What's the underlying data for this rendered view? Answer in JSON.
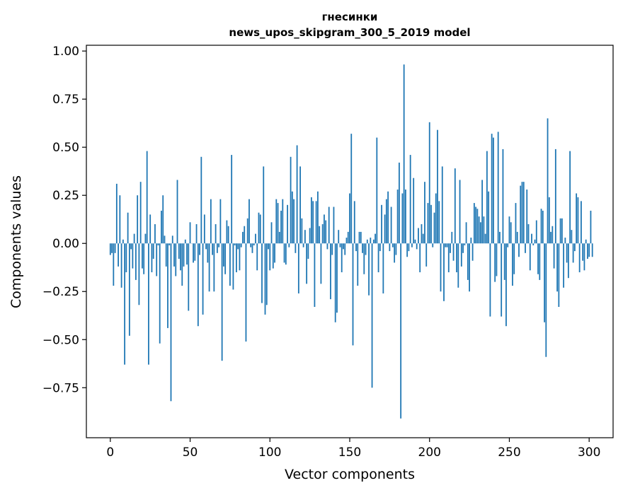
{
  "chart_data": {
    "type": "bar",
    "title": "гнесинки",
    "subtitle": "news_upos_skipgram_300_5_2019 model",
    "xlabel": "Vector components",
    "ylabel": "Components values",
    "xlim": [
      -15,
      315
    ],
    "ylim": [
      -1.01,
      1.03
    ],
    "xticks": [
      0,
      50,
      100,
      150,
      200,
      250,
      300
    ],
    "yticks": [
      -0.75,
      -0.5,
      -0.25,
      0.0,
      0.25,
      0.5,
      0.75,
      1.0
    ],
    "xtick_labels": [
      "0",
      "50",
      "100",
      "150",
      "200",
      "250",
      "300"
    ],
    "ytick_labels": [
      "−0.75",
      "−0.50",
      "−0.25",
      "0.00",
      "0.25",
      "0.50",
      "0.75",
      "1.00"
    ],
    "grid": false,
    "bar_color": "#1f77b4",
    "series": [
      {
        "values": [
          -0.06,
          -0.05,
          -0.22,
          -0.05,
          0.31,
          -0.12,
          0.25,
          -0.23,
          0.02,
          -0.63,
          -0.15,
          0.16,
          -0.48,
          -0.03,
          -0.13,
          0.05,
          -0.19,
          0.25,
          -0.32,
          0.32,
          -0.13,
          -0.16,
          0.05,
          0.48,
          -0.63,
          0.15,
          -0.15,
          -0.08,
          0.1,
          -0.17,
          -0.01,
          -0.52,
          0.17,
          0.25,
          0.04,
          -0.12,
          -0.44,
          -0.01,
          -0.82,
          0.04,
          -0.12,
          -0.17,
          0.33,
          -0.08,
          -0.14,
          -0.22,
          -0.12,
          0.02,
          -0.11,
          -0.35,
          0.11,
          0.0,
          -0.1,
          -0.09,
          0.1,
          -0.43,
          -0.06,
          0.45,
          -0.37,
          0.15,
          -0.03,
          -0.1,
          -0.25,
          0.23,
          -0.06,
          -0.25,
          0.1,
          -0.05,
          -0.02,
          0.23,
          -0.61,
          -0.12,
          -0.16,
          0.12,
          0.09,
          -0.22,
          0.46,
          -0.24,
          -0.01,
          -0.15,
          -0.03,
          -0.14,
          -0.02,
          0.06,
          0.09,
          -0.51,
          0.13,
          0.23,
          -0.02,
          -0.05,
          -0.01,
          0.05,
          -0.14,
          0.16,
          0.15,
          -0.31,
          0.4,
          -0.37,
          -0.32,
          -0.03,
          -0.14,
          0.11,
          -0.13,
          -0.1,
          0.23,
          0.21,
          0.06,
          0.17,
          0.23,
          -0.1,
          -0.11,
          0.2,
          -0.02,
          0.45,
          0.27,
          0.23,
          -0.05,
          0.51,
          -0.26,
          0.4,
          0.13,
          -0.02,
          0.07,
          -0.21,
          -0.08,
          0.08,
          0.24,
          0.22,
          -0.33,
          0.22,
          0.27,
          0.09,
          -0.21,
          0.1,
          0.15,
          0.12,
          -0.03,
          0.19,
          -0.29,
          -0.06,
          0.19,
          -0.41,
          -0.36,
          0.07,
          -0.02,
          -0.15,
          -0.03,
          -0.06,
          0.03,
          0.06,
          0.26,
          0.57,
          -0.53,
          0.22,
          -0.04,
          -0.22,
          0.06,
          0.06,
          -0.05,
          -0.16,
          -0.06,
          0.02,
          -0.27,
          0.03,
          -0.75,
          0.02,
          0.05,
          0.55,
          -0.15,
          -0.04,
          0.2,
          -0.26,
          0.15,
          0.23,
          0.27,
          -0.04,
          0.19,
          -0.02,
          -0.1,
          -0.06,
          0.28,
          0.42,
          -0.91,
          0.26,
          0.93,
          0.28,
          -0.07,
          -0.04,
          0.46,
          -0.02,
          0.34,
          0.02,
          -0.03,
          0.08,
          -0.15,
          0.1,
          0.05,
          0.32,
          -0.12,
          0.21,
          0.63,
          0.2,
          -0.02,
          0.16,
          0.26,
          0.59,
          0.22,
          -0.25,
          0.4,
          -0.3,
          -0.02,
          -0.02,
          -0.15,
          -0.05,
          0.06,
          -0.09,
          0.39,
          -0.15,
          -0.23,
          0.33,
          -0.12,
          -0.05,
          -0.01,
          0.11,
          -0.19,
          -0.25,
          0.03,
          -0.09,
          0.21,
          0.19,
          0.18,
          0.14,
          0.11,
          0.33,
          0.14,
          0.05,
          0.48,
          0.27,
          -0.38,
          0.57,
          0.55,
          -0.2,
          -0.17,
          0.58,
          0.06,
          -0.38,
          0.49,
          -0.19,
          -0.43,
          -0.02,
          0.14,
          0.11,
          -0.22,
          -0.16,
          0.21,
          0.06,
          -0.07,
          0.3,
          0.32,
          0.32,
          -0.05,
          0.28,
          0.1,
          -0.14,
          0.05,
          -0.01,
          0.02,
          0.12,
          -0.16,
          -0.19,
          0.18,
          0.17,
          -0.41,
          -0.59,
          0.65,
          0.24,
          0.06,
          0.09,
          -0.13,
          0.49,
          -0.25,
          -0.33,
          0.13,
          0.13,
          -0.23,
          0.03,
          -0.1,
          -0.18,
          0.48,
          0.07,
          -0.1,
          -0.04,
          0.26,
          0.24,
          -0.15,
          0.22,
          -0.09,
          -0.14,
          0.02,
          -0.08,
          -0.07,
          0.17,
          -0.07
        ]
      }
    ]
  }
}
